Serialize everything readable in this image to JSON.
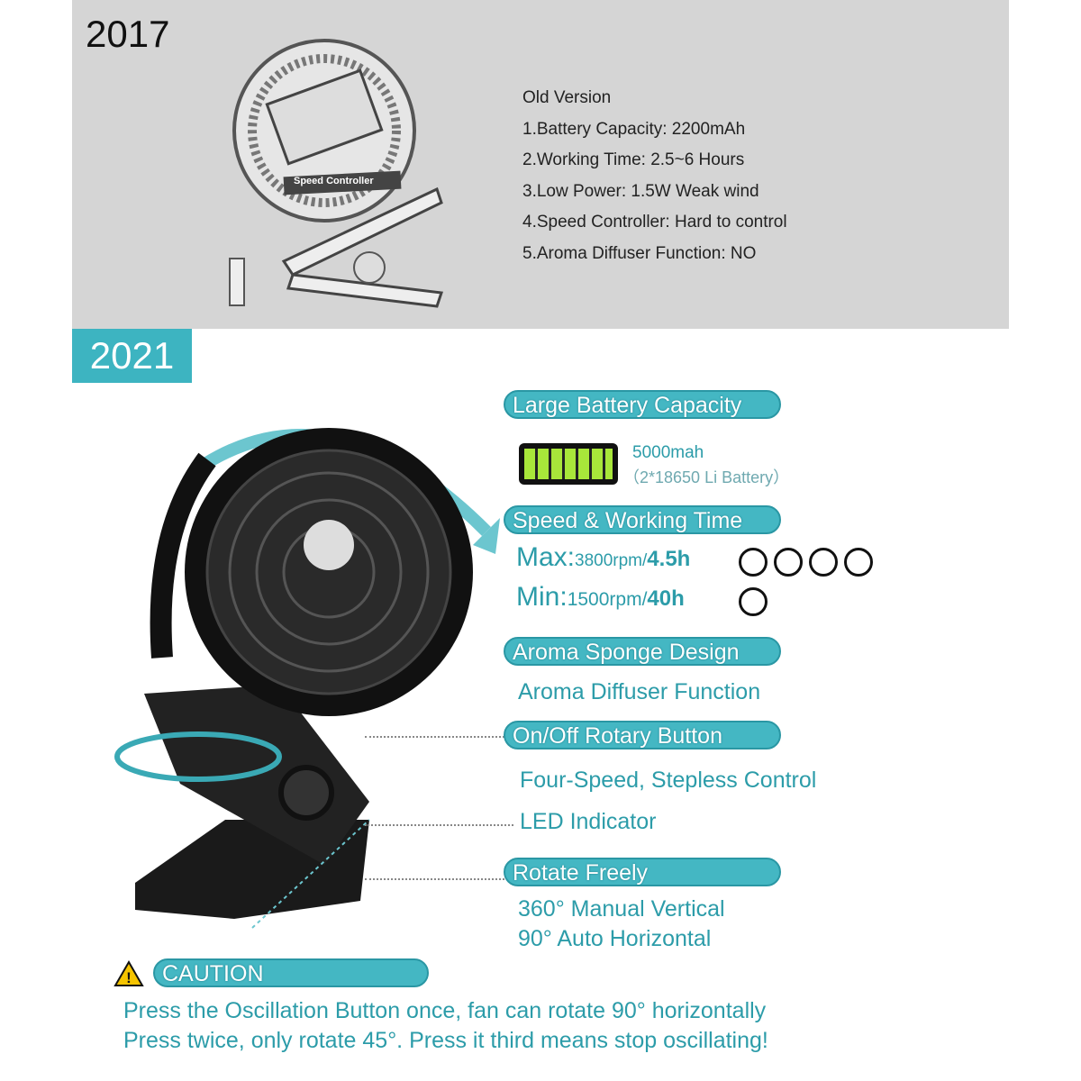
{
  "old": {
    "year": "2017",
    "heading": "Old Version",
    "items": [
      "1.Battery Capacity: 2200mAh",
      "2.Working Time: 2.5~6 Hours",
      "3.Low Power: 1.5W Weak wind",
      "4.Speed Controller: Hard to control",
      "5.Aroma Diffuser Function: NO"
    ],
    "label": "Speed Controller"
  },
  "new": {
    "year": "2021",
    "battery": {
      "title": "Large Battery Capacity",
      "capacity": "5000mah",
      "type": "（2*18650 Li Battery）"
    },
    "speed": {
      "title": "Speed & Working Time",
      "max_label": "Max:",
      "max_value": "3800rpm/",
      "max_time": "4.5h",
      "min_label": "Min:",
      "min_value": "1500rpm/",
      "min_time": "40h"
    },
    "aroma": {
      "title": "Aroma Sponge Design",
      "desc": "Aroma Diffuser Function"
    },
    "button": {
      "title": "On/Off Rotary Button",
      "desc": "Four-Speed, Stepless Control",
      "led": "LED Indicator"
    },
    "rotate": {
      "title": "Rotate Freely",
      "line1": "360° Manual Vertical",
      "line2": "90° Auto Horizontal"
    },
    "caution": {
      "title": "CAUTION",
      "line1": "Press the Oscillation Button once, fan can rotate 90° horizontally",
      "line2": "Press twice, only rotate 45°. Press it third means stop oscillating!"
    }
  },
  "colors": {
    "teal": "#44b7c3",
    "text_teal": "#2c9ca9",
    "gray_panel": "#d5d5d5"
  }
}
